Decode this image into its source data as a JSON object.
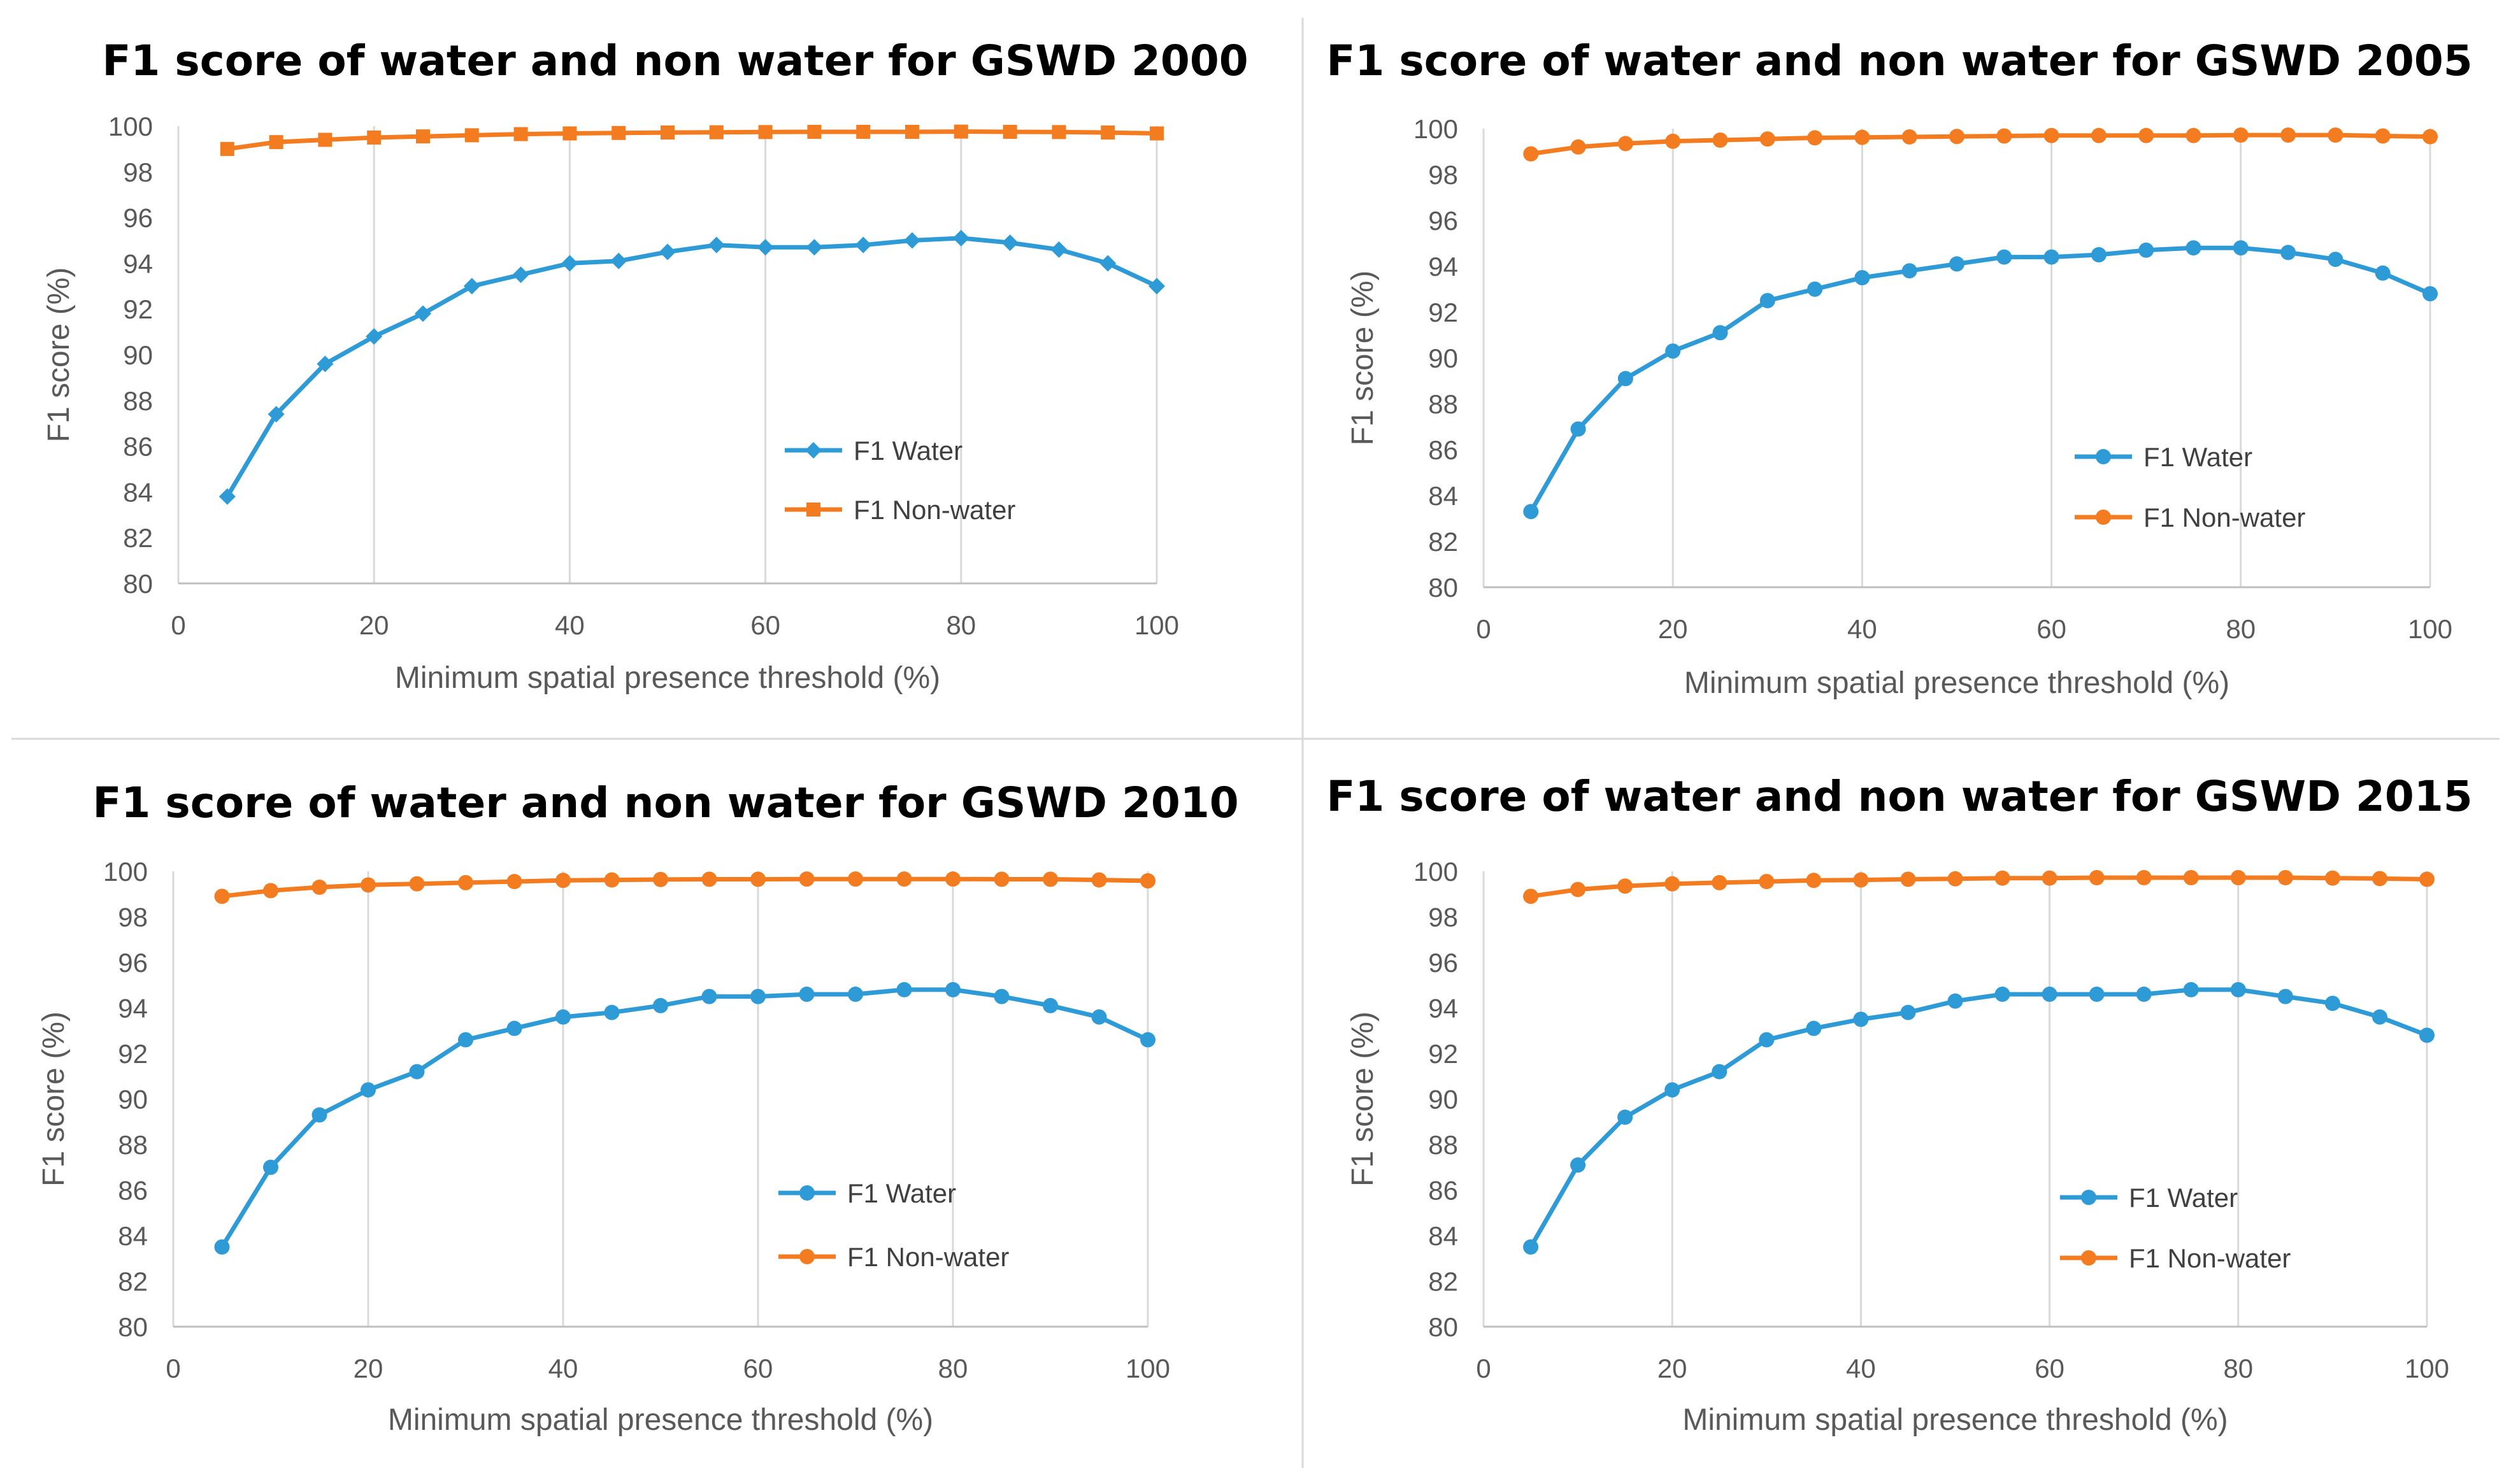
{
  "chart_data": [
    {
      "type": "line",
      "title": "F1 score of water and non water for GSWD 2000",
      "xlabel": "Minimum spatial presence threshold (%)",
      "ylabel": "F1 score (%)",
      "xlim": [
        0,
        100
      ],
      "ylim": [
        80,
        100
      ],
      "xticks": [
        0,
        20,
        40,
        60,
        80,
        100
      ],
      "yticks": [
        80,
        82,
        84,
        86,
        88,
        90,
        92,
        94,
        96,
        98,
        100
      ],
      "grid": "vertical",
      "legend": "right",
      "x": [
        5,
        10,
        15,
        20,
        25,
        30,
        35,
        40,
        45,
        50,
        55,
        60,
        65,
        70,
        75,
        80,
        85,
        90,
        95,
        100
      ],
      "series": [
        {
          "name": "F1 Water",
          "color": "#2E9BD6",
          "marker": "diamond",
          "values": [
            83.8,
            87.4,
            89.6,
            90.8,
            91.8,
            93.0,
            93.5,
            94.0,
            94.1,
            94.5,
            94.8,
            94.7,
            94.7,
            94.8,
            95.0,
            95.1,
            94.9,
            94.6,
            94.0,
            93.0
          ]
        },
        {
          "name": "F1 Non-water",
          "color": "#F47C20",
          "marker": "square",
          "values": [
            99.0,
            99.3,
            99.4,
            99.5,
            99.55,
            99.6,
            99.65,
            99.68,
            99.7,
            99.72,
            99.73,
            99.74,
            99.75,
            99.75,
            99.75,
            99.76,
            99.75,
            99.74,
            99.72,
            99.68
          ]
        }
      ]
    },
    {
      "type": "line",
      "title": "F1 score of water and non water for GSWD 2005",
      "xlabel": "Minimum spatial presence threshold (%)",
      "ylabel": "F1 score (%)",
      "xlim": [
        0,
        100
      ],
      "ylim": [
        80,
        100
      ],
      "xticks": [
        0,
        20,
        40,
        60,
        80,
        100
      ],
      "yticks": [
        80,
        82,
        84,
        86,
        88,
        90,
        92,
        94,
        96,
        98,
        100
      ],
      "grid": "vertical",
      "legend": "right",
      "x": [
        5,
        10,
        15,
        20,
        25,
        30,
        35,
        40,
        45,
        50,
        55,
        60,
        65,
        70,
        75,
        80,
        85,
        90,
        95,
        100
      ],
      "series": [
        {
          "name": "F1 Water",
          "color": "#2E9BD6",
          "marker": "circle",
          "values": [
            83.3,
            86.9,
            89.1,
            90.3,
            91.1,
            92.5,
            93.0,
            93.5,
            93.8,
            94.1,
            94.4,
            94.4,
            94.5,
            94.7,
            94.8,
            94.8,
            94.6,
            94.3,
            93.7,
            92.8
          ]
        },
        {
          "name": "F1 Non-water",
          "color": "#F47C20",
          "marker": "circle",
          "values": [
            98.9,
            99.2,
            99.35,
            99.45,
            99.5,
            99.55,
            99.6,
            99.62,
            99.64,
            99.66,
            99.68,
            99.7,
            99.7,
            99.7,
            99.7,
            99.72,
            99.72,
            99.72,
            99.68,
            99.65
          ]
        }
      ]
    },
    {
      "type": "line",
      "title": "F1 score of water and non water for GSWD 2010",
      "xlabel": "Minimum spatial presence threshold (%)",
      "ylabel": "F1 score (%)",
      "xlim": [
        0,
        100
      ],
      "ylim": [
        80,
        100
      ],
      "xticks": [
        0,
        20,
        40,
        60,
        80,
        100
      ],
      "yticks": [
        80,
        82,
        84,
        86,
        88,
        90,
        92,
        94,
        96,
        98,
        100
      ],
      "grid": "vertical",
      "legend": "right",
      "x": [
        5,
        10,
        15,
        20,
        25,
        30,
        35,
        40,
        45,
        50,
        55,
        60,
        65,
        70,
        75,
        80,
        85,
        90,
        95,
        100
      ],
      "series": [
        {
          "name": "F1 Water",
          "color": "#2E9BD6",
          "marker": "circle",
          "values": [
            83.5,
            87.0,
            89.3,
            90.4,
            91.2,
            92.6,
            93.1,
            93.6,
            93.8,
            94.1,
            94.5,
            94.5,
            94.6,
            94.6,
            94.8,
            94.8,
            94.5,
            94.1,
            93.6,
            92.6
          ]
        },
        {
          "name": "F1 Non-water",
          "color": "#F47C20",
          "marker": "circle",
          "values": [
            98.9,
            99.15,
            99.3,
            99.4,
            99.45,
            99.5,
            99.55,
            99.6,
            99.62,
            99.64,
            99.65,
            99.65,
            99.66,
            99.66,
            99.66,
            99.66,
            99.65,
            99.65,
            99.62,
            99.58
          ]
        }
      ]
    },
    {
      "type": "line",
      "title": "F1 score of water and non water for GSWD 2015",
      "xlabel": "Minimum spatial presence threshold (%)",
      "ylabel": "F1 score (%)",
      "xlim": [
        0,
        100
      ],
      "ylim": [
        80,
        100
      ],
      "xticks": [
        0,
        20,
        40,
        60,
        80,
        100
      ],
      "yticks": [
        80,
        82,
        84,
        86,
        88,
        90,
        92,
        94,
        96,
        98,
        100
      ],
      "grid": "vertical",
      "legend": "right",
      "x": [
        5,
        10,
        15,
        20,
        25,
        30,
        35,
        40,
        45,
        50,
        55,
        60,
        65,
        70,
        75,
        80,
        85,
        90,
        95,
        100
      ],
      "series": [
        {
          "name": "F1 Water",
          "color": "#2E9BD6",
          "marker": "circle",
          "values": [
            83.5,
            87.1,
            89.2,
            90.4,
            91.2,
            92.6,
            93.1,
            93.5,
            93.8,
            94.3,
            94.6,
            94.6,
            94.6,
            94.6,
            94.8,
            94.8,
            94.5,
            94.2,
            93.6,
            92.8
          ]
        },
        {
          "name": "F1 Non-water",
          "color": "#F47C20",
          "marker": "circle",
          "values": [
            98.9,
            99.2,
            99.35,
            99.45,
            99.5,
            99.55,
            99.6,
            99.62,
            99.65,
            99.67,
            99.7,
            99.7,
            99.72,
            99.72,
            99.72,
            99.72,
            99.72,
            99.7,
            99.68,
            99.65
          ]
        }
      ]
    }
  ]
}
